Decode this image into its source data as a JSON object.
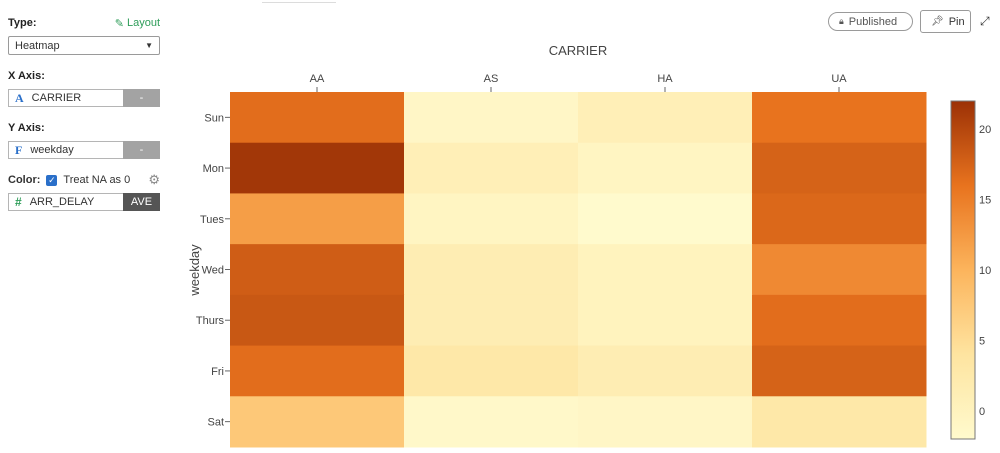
{
  "panel": {
    "type_label": "Type:",
    "layout_link": "Layout",
    "chart_type_value": "Heatmap",
    "x_axis_label": "X Axis:",
    "x_field_type": "A",
    "x_field": "CARRIER",
    "x_field_btn": "-",
    "y_axis_label": "Y Axis:",
    "y_field_type": "F",
    "y_field": "weekday",
    "y_field_btn": "-",
    "color_label": "Color:",
    "treat_na": "Treat NA as 0",
    "color_field_type": "#",
    "color_field": "ARR_DELAY",
    "color_agg": "AVE"
  },
  "header": {
    "published_label": "Published",
    "pin_label": "Pin"
  },
  "chart_data": {
    "type": "heatmap",
    "title": "",
    "xlabel": "CARRIER",
    "ylabel": "weekday",
    "x": [
      "AA",
      "AS",
      "HA",
      "UA"
    ],
    "y": [
      "Sun",
      "Mon",
      "Tues",
      "Wed",
      "Thurs",
      "Fri",
      "Sat"
    ],
    "z": [
      [
        16.5,
        -1.0,
        1.0,
        16.0
      ],
      [
        21.5,
        1.0,
        -0.5,
        17.5
      ],
      [
        12.0,
        -0.5,
        -2.0,
        17.0
      ],
      [
        18.0,
        1.5,
        0.0,
        14.0
      ],
      [
        18.5,
        1.5,
        0.0,
        16.5
      ],
      [
        16.5,
        3.0,
        1.5,
        17.5
      ],
      [
        7.5,
        -1.5,
        -1.0,
        3.0
      ]
    ],
    "colorbar": {
      "range": [
        -2,
        22
      ],
      "ticks": [
        0,
        5,
        10,
        15,
        20
      ]
    },
    "colors": {
      "low": "#fffacd",
      "high": "#9c3106"
    }
  }
}
